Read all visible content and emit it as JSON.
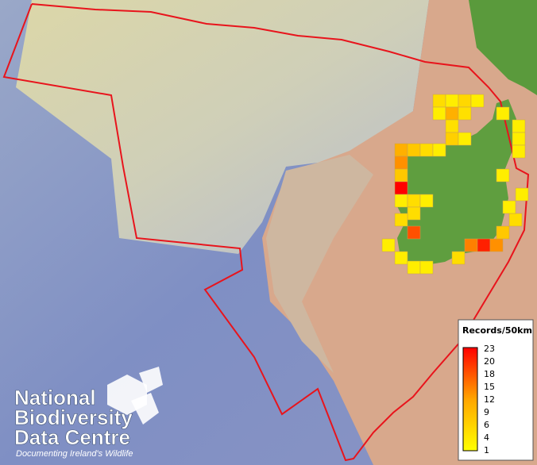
{
  "legend": {
    "title": "Records/50km",
    "ticks": [
      23,
      20,
      18,
      15,
      12,
      9,
      6,
      4,
      1
    ]
  },
  "logo": {
    "lines": [
      "National",
      "Biodiversity",
      "Data Centre"
    ],
    "tagline": "Documenting Ireland's Wildlife"
  }
}
